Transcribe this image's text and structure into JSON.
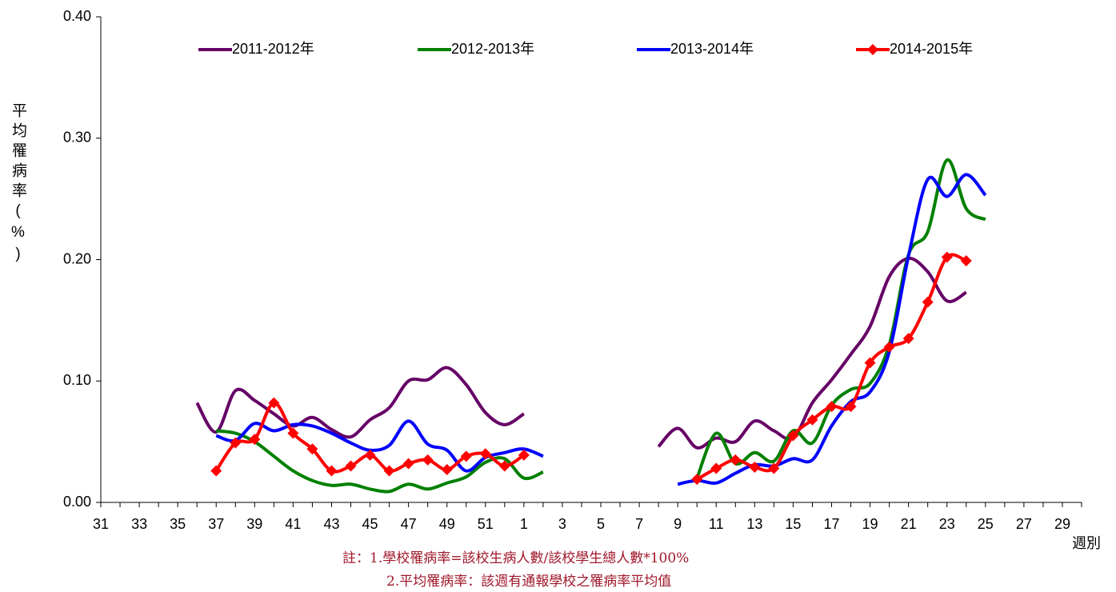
{
  "chart_data": {
    "type": "line",
    "y_label": "平均罹病率(%)",
    "x_label": "週別",
    "notes": [
      "註：1.學校罹病率=該校生病人數/該校學生總人數*100%",
      "2.平均罹病率：該週有通報學校之罹病率平均值"
    ],
    "categories": [
      "31",
      null,
      "33",
      null,
      "35",
      null,
      "37",
      null,
      "39",
      null,
      "41",
      null,
      "43",
      null,
      "45",
      null,
      "47",
      null,
      "49",
      null,
      "51",
      null,
      "1",
      null,
      "3",
      null,
      "5",
      null,
      "7",
      null,
      "9",
      null,
      "11",
      null,
      "13",
      null,
      "15",
      null,
      "17",
      null,
      "19",
      null,
      "21",
      null,
      "23",
      null,
      "25",
      null,
      "27",
      null,
      "29",
      null
    ],
    "ylim": [
      0,
      0.4
    ],
    "yticks": [
      {
        "value": 0,
        "label": "0.00"
      },
      {
        "value": 0.1,
        "label": "0.10"
      },
      {
        "value": 0.2,
        "label": "0.20"
      },
      {
        "value": 0.3,
        "label": "0.30"
      },
      {
        "value": 0.4,
        "label": "0.40"
      }
    ],
    "grid": false,
    "legend": "top",
    "series": [
      {
        "name": "2011-2012年",
        "color": "#660066",
        "marker": "none",
        "values": [
          null,
          null,
          null,
          null,
          null,
          0.082,
          0.058,
          0.092,
          0.084,
          0.073,
          0.063,
          0.07,
          0.06,
          0.054,
          0.068,
          0.078,
          0.1,
          0.101,
          0.111,
          0.097,
          0.074,
          0.064,
          0.073,
          null,
          null,
          null,
          null,
          null,
          null,
          0.046,
          0.061,
          0.045,
          0.053,
          0.05,
          0.067,
          0.059,
          0.053,
          0.082,
          0.101,
          0.122,
          0.145,
          0.186,
          0.201,
          0.19,
          0.166,
          0.173,
          null,
          null,
          null,
          null,
          null,
          null
        ]
      },
      {
        "name": "2012-2013年",
        "color": "#008000",
        "marker": "none",
        "values": [
          null,
          null,
          null,
          null,
          null,
          null,
          0.059,
          0.057,
          0.05,
          0.038,
          0.026,
          0.018,
          0.014,
          0.015,
          0.011,
          0.009,
          0.015,
          0.011,
          0.016,
          0.021,
          0.033,
          0.036,
          0.02,
          0.025,
          null,
          null,
          null,
          null,
          null,
          null,
          null,
          0.02,
          0.057,
          0.032,
          0.041,
          0.034,
          0.059,
          0.049,
          0.08,
          0.093,
          0.098,
          0.13,
          0.204,
          0.223,
          0.282,
          0.242,
          0.233,
          null,
          null,
          null,
          null,
          null
        ]
      },
      {
        "name": "2013-2014年",
        "color": "#0000ff",
        "marker": "none",
        "values": [
          null,
          null,
          null,
          null,
          null,
          null,
          0.055,
          0.051,
          0.065,
          0.059,
          0.064,
          0.063,
          0.057,
          0.049,
          0.043,
          0.047,
          0.067,
          0.048,
          0.043,
          0.026,
          0.037,
          0.041,
          0.044,
          0.038,
          null,
          null,
          null,
          null,
          null,
          null,
          0.015,
          0.018,
          0.016,
          0.024,
          0.031,
          0.03,
          0.036,
          0.035,
          0.063,
          0.083,
          0.091,
          0.124,
          0.203,
          0.266,
          0.252,
          0.27,
          0.253,
          null,
          null,
          null,
          null,
          null
        ]
      },
      {
        "name": "2014-2015年",
        "color": "#ff0000",
        "marker": "diamond",
        "values": [
          null,
          null,
          null,
          null,
          null,
          null,
          0.026,
          0.049,
          0.052,
          0.082,
          0.057,
          0.044,
          0.026,
          0.03,
          0.039,
          0.026,
          0.032,
          0.035,
          0.027,
          0.038,
          0.04,
          0.03,
          0.039,
          null,
          null,
          null,
          null,
          null,
          null,
          null,
          null,
          0.019,
          0.028,
          0.035,
          0.029,
          0.028,
          0.055,
          0.068,
          0.079,
          0.079,
          0.115,
          0.128,
          0.135,
          0.165,
          0.202,
          0.199,
          null,
          null,
          null,
          null,
          null,
          null
        ]
      }
    ]
  }
}
